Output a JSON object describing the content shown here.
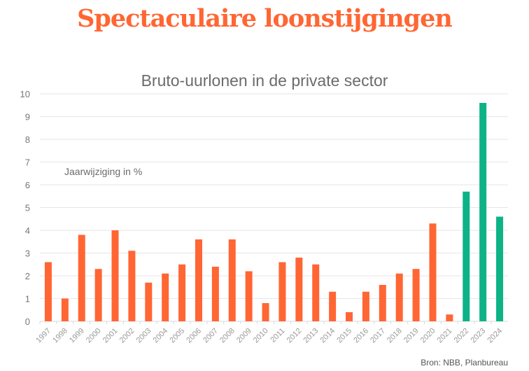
{
  "headline": "Spectaculaire loonstijgingen",
  "source": "Bron: NBB, Planbureau",
  "colors": {
    "historic": "#ff6633",
    "forecast": "#0db386",
    "headline": "#ff6633",
    "grid": "#e6e6e6",
    "text": "#6b6b6b"
  },
  "chart_data": {
    "type": "bar",
    "title": "Bruto-uurlonen in de private sector",
    "annotation": "Jaarwijziging in %",
    "categories": [
      "1997",
      "1998",
      "1999",
      "2000",
      "2001",
      "2002",
      "2003",
      "2004",
      "2005",
      "2006",
      "2007",
      "2008",
      "2009",
      "2010",
      "2011",
      "2012",
      "2013",
      "2014",
      "2015",
      "2016",
      "2017",
      "2018",
      "2019",
      "2020",
      "2021",
      "2022",
      "2023",
      "2024"
    ],
    "values": [
      2.6,
      1.0,
      3.8,
      2.3,
      4.0,
      3.1,
      1.7,
      2.1,
      2.5,
      3.6,
      2.4,
      3.6,
      2.2,
      0.8,
      2.6,
      2.8,
      2.5,
      1.3,
      0.4,
      1.3,
      1.6,
      2.1,
      2.3,
      4.3,
      0.3,
      5.7,
      9.6,
      4.6
    ],
    "forecast_from": "2022",
    "ylim": [
      0,
      10
    ],
    "yticks": [
      "0",
      "1",
      "2",
      "3",
      "4",
      "5",
      "6",
      "7",
      "8",
      "9",
      "10"
    ],
    "grid": true,
    "xlabel": "",
    "ylabel": ""
  }
}
